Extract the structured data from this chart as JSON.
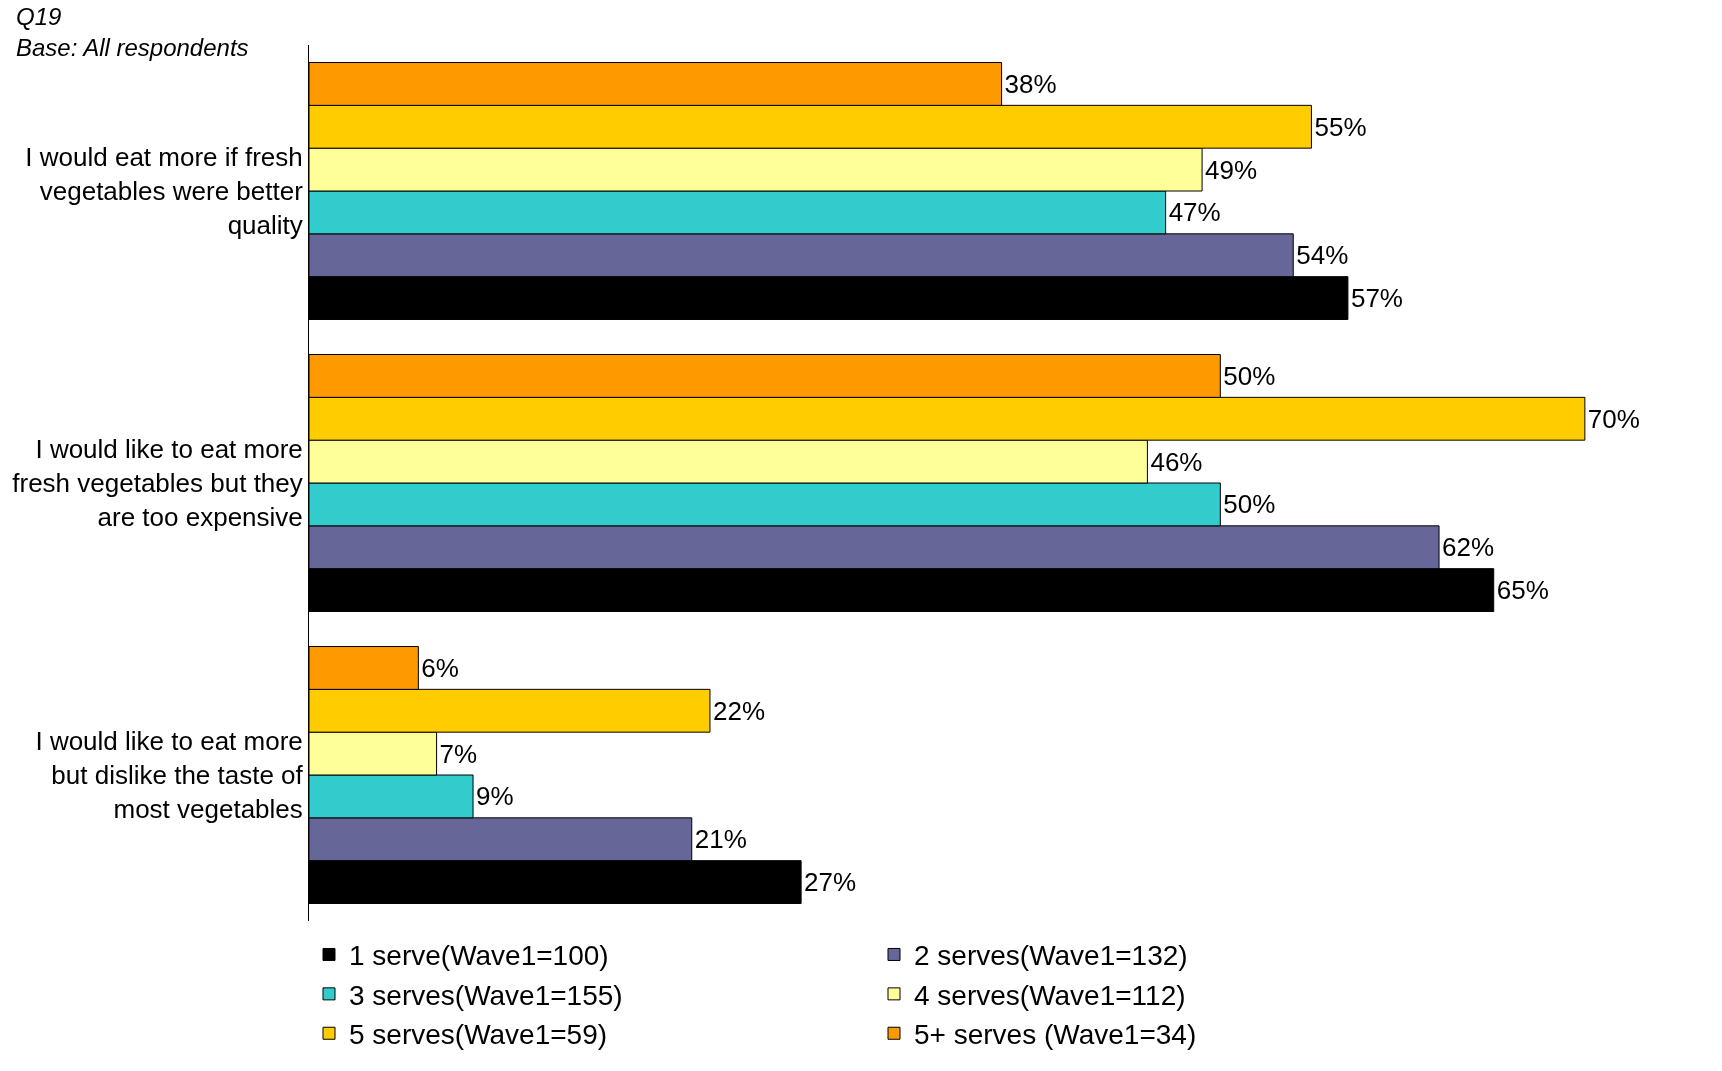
{
  "chart_data": {
    "type": "bar",
    "orientation": "horizontal",
    "legend": "bottom",
    "annotations": [
      "Q19",
      "Base: All respondents"
    ],
    "categories": [
      "I would eat more if fresh vegetables were better quality",
      "I would like to eat more fresh vegetables but they are too expensive",
      "I would like to eat more but dislike the taste of most vegetables"
    ],
    "series": [
      {
        "name": "1 serve(Wave1=100)",
        "color": "#000000",
        "values": [
          57,
          65,
          27
        ],
        "value_labels": [
          "57%",
          "65%",
          "27%"
        ]
      },
      {
        "name": "2 serves(Wave1=132)",
        "color": "#666699",
        "values": [
          54,
          62,
          21
        ],
        "value_labels": [
          "54%",
          "62%",
          "21%"
        ]
      },
      {
        "name": "3 serves(Wave1=155)",
        "color": "#33cccc",
        "values": [
          47,
          50,
          9
        ],
        "value_labels": [
          "47%",
          "50%",
          "9%"
        ]
      },
      {
        "name": "4 serves(Wave1=112)",
        "color": "#ffff99",
        "values": [
          49,
          46,
          7
        ],
        "value_labels": [
          "49%",
          "46%",
          "7%"
        ]
      },
      {
        "name": "5 serves(Wave1=59)",
        "color": "#ffcc00",
        "values": [
          55,
          70,
          22
        ],
        "value_labels": [
          "55%",
          "70%",
          "22%"
        ]
      },
      {
        "name": "5+ serves (Wave1=34)",
        "color": "#ff9900",
        "values": [
          38,
          50,
          6
        ],
        "value_labels": [
          "38%",
          "50%",
          "6%"
        ]
      }
    ]
  }
}
